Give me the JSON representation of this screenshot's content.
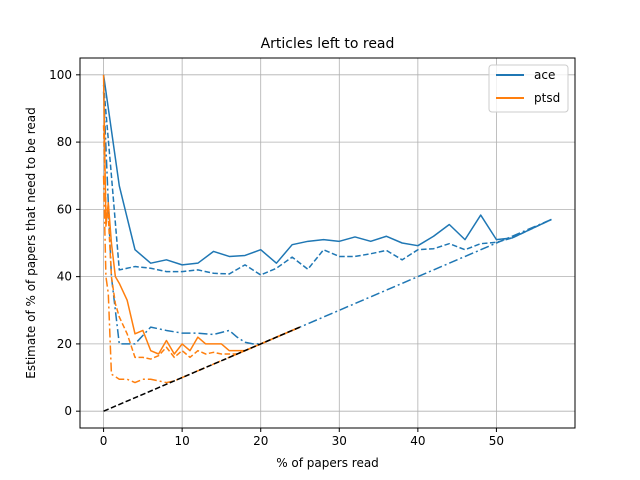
{
  "chart_data": {
    "type": "line",
    "title": "Articles left to read",
    "xlabel": "% of papers read",
    "ylabel": "Estimate of % of papers that need to be read",
    "xlim": [
      -3,
      60
    ],
    "ylim": [
      -5,
      105
    ],
    "xticks": [
      0,
      10,
      20,
      30,
      40,
      50
    ],
    "yticks": [
      0,
      20,
      40,
      60,
      80,
      100
    ],
    "grid": true,
    "legend": {
      "position": "top-right",
      "entries": [
        {
          "label": "ace",
          "color": "#1f77b4"
        },
        {
          "label": "ptsd",
          "color": "#ff7f0e"
        }
      ]
    },
    "series": [
      {
        "name": "ace",
        "color": "#1f77b4",
        "style": "solid",
        "points": [
          [
            0,
            100
          ],
          [
            2,
            67
          ],
          [
            4,
            48
          ],
          [
            6,
            44
          ],
          [
            8,
            45
          ],
          [
            10,
            43.5
          ],
          [
            12,
            44
          ],
          [
            14,
            47.5
          ],
          [
            16,
            46
          ],
          [
            18,
            46.3
          ],
          [
            20,
            48
          ],
          [
            22,
            44
          ],
          [
            24,
            49.5
          ],
          [
            26,
            50.5
          ],
          [
            28,
            51
          ],
          [
            30,
            50.5
          ],
          [
            32,
            51.8
          ],
          [
            34,
            50.5
          ],
          [
            36,
            52
          ],
          [
            38,
            50
          ],
          [
            40,
            49.2
          ],
          [
            42,
            52
          ],
          [
            44,
            55.5
          ],
          [
            46,
            51
          ],
          [
            48,
            58.3
          ],
          [
            50,
            51
          ],
          [
            52,
            51.5
          ],
          [
            57,
            57
          ]
        ]
      },
      {
        "color": "#1f77b4",
        "style": "dashed",
        "points": [
          [
            0,
            97
          ],
          [
            1,
            70
          ],
          [
            2,
            42
          ],
          [
            4,
            43
          ],
          [
            6,
            42.5
          ],
          [
            8,
            41.5
          ],
          [
            10,
            41.5
          ],
          [
            12,
            42
          ],
          [
            14,
            41
          ],
          [
            16,
            40.8
          ],
          [
            18,
            43.5
          ],
          [
            20,
            40.5
          ],
          [
            22,
            42.5
          ],
          [
            24,
            45.8
          ],
          [
            26,
            42.2
          ],
          [
            28,
            48
          ],
          [
            30,
            46
          ],
          [
            32,
            46
          ],
          [
            34,
            46.8
          ],
          [
            36,
            47.8
          ],
          [
            38,
            45
          ],
          [
            40,
            48
          ],
          [
            42,
            48.3
          ],
          [
            44,
            49.8
          ],
          [
            46,
            48
          ],
          [
            48,
            49.8
          ],
          [
            50,
            50.2
          ],
          [
            52,
            51.5
          ],
          [
            57,
            57
          ]
        ]
      },
      {
        "color": "#1f77b4",
        "style": "dashdot",
        "points": [
          [
            0,
            95
          ],
          [
            1,
            40
          ],
          [
            2,
            20
          ],
          [
            4,
            20
          ],
          [
            5,
            22.5
          ],
          [
            6,
            25
          ],
          [
            8,
            24
          ],
          [
            10,
            23.2
          ],
          [
            12,
            23.2
          ],
          [
            14,
            22.8
          ],
          [
            16,
            24
          ],
          [
            17,
            22
          ],
          [
            18,
            20.5
          ],
          [
            19,
            20
          ],
          [
            20,
            20
          ],
          [
            25,
            25
          ],
          [
            30,
            30
          ],
          [
            35,
            35
          ],
          [
            40,
            40
          ],
          [
            45,
            45
          ],
          [
            50,
            50
          ],
          [
            52,
            52
          ],
          [
            57,
            57
          ]
        ]
      },
      {
        "color": "#ff7f0e",
        "style": "solid",
        "points": [
          [
            0,
            100
          ],
          [
            0.3,
            55
          ],
          [
            0.6,
            62
          ],
          [
            1,
            50
          ],
          [
            1.5,
            40
          ],
          [
            2,
            38
          ],
          [
            3,
            33
          ],
          [
            4,
            23
          ],
          [
            5,
            24
          ],
          [
            6,
            18
          ],
          [
            7,
            17
          ],
          [
            8,
            21
          ],
          [
            9,
            17
          ],
          [
            10,
            20
          ],
          [
            11,
            18
          ],
          [
            12,
            22
          ],
          [
            13,
            20
          ],
          [
            14,
            20
          ],
          [
            15,
            20
          ],
          [
            16,
            18
          ],
          [
            17,
            18
          ],
          [
            18,
            18
          ],
          [
            19,
            19
          ],
          [
            20,
            20
          ],
          [
            22,
            22
          ],
          [
            24,
            24
          ],
          [
            25,
            25
          ]
        ]
      },
      {
        "color": "#ff7f0e",
        "style": "dashed",
        "points": [
          [
            0,
            85
          ],
          [
            0.3,
            60
          ],
          [
            0.6,
            58
          ],
          [
            1,
            40
          ],
          [
            1.5,
            32
          ],
          [
            2,
            28
          ],
          [
            3,
            23
          ],
          [
            4,
            16
          ],
          [
            5,
            16
          ],
          [
            6,
            15.5
          ],
          [
            7,
            16.5
          ],
          [
            8,
            19
          ],
          [
            9,
            16
          ],
          [
            10,
            18
          ],
          [
            11,
            16
          ],
          [
            12,
            18
          ],
          [
            13,
            17
          ],
          [
            14,
            17.5
          ],
          [
            15,
            17
          ],
          [
            16,
            17
          ],
          [
            17,
            17
          ],
          [
            18,
            18
          ],
          [
            20,
            20
          ],
          [
            22,
            22
          ],
          [
            25,
            25
          ]
        ]
      },
      {
        "color": "#ff7f0e",
        "style": "dashdot",
        "points": [
          [
            0,
            70
          ],
          [
            0.3,
            40
          ],
          [
            0.6,
            35
          ],
          [
            1,
            11
          ],
          [
            2,
            9.5
          ],
          [
            3,
            9.5
          ],
          [
            4,
            8.5
          ],
          [
            5,
            9.5
          ],
          [
            6,
            9.5
          ],
          [
            7,
            9
          ],
          [
            8,
            8.5
          ],
          [
            9,
            9
          ],
          [
            10,
            10
          ],
          [
            11,
            11
          ],
          [
            12,
            12
          ],
          [
            13,
            13
          ],
          [
            14,
            14
          ],
          [
            15,
            15
          ],
          [
            16,
            16
          ],
          [
            18,
            18
          ],
          [
            20,
            20
          ],
          [
            25,
            25
          ]
        ]
      },
      {
        "color": "#000000",
        "style": "dashed",
        "points": [
          [
            0,
            0
          ],
          [
            25,
            25
          ]
        ]
      }
    ]
  }
}
